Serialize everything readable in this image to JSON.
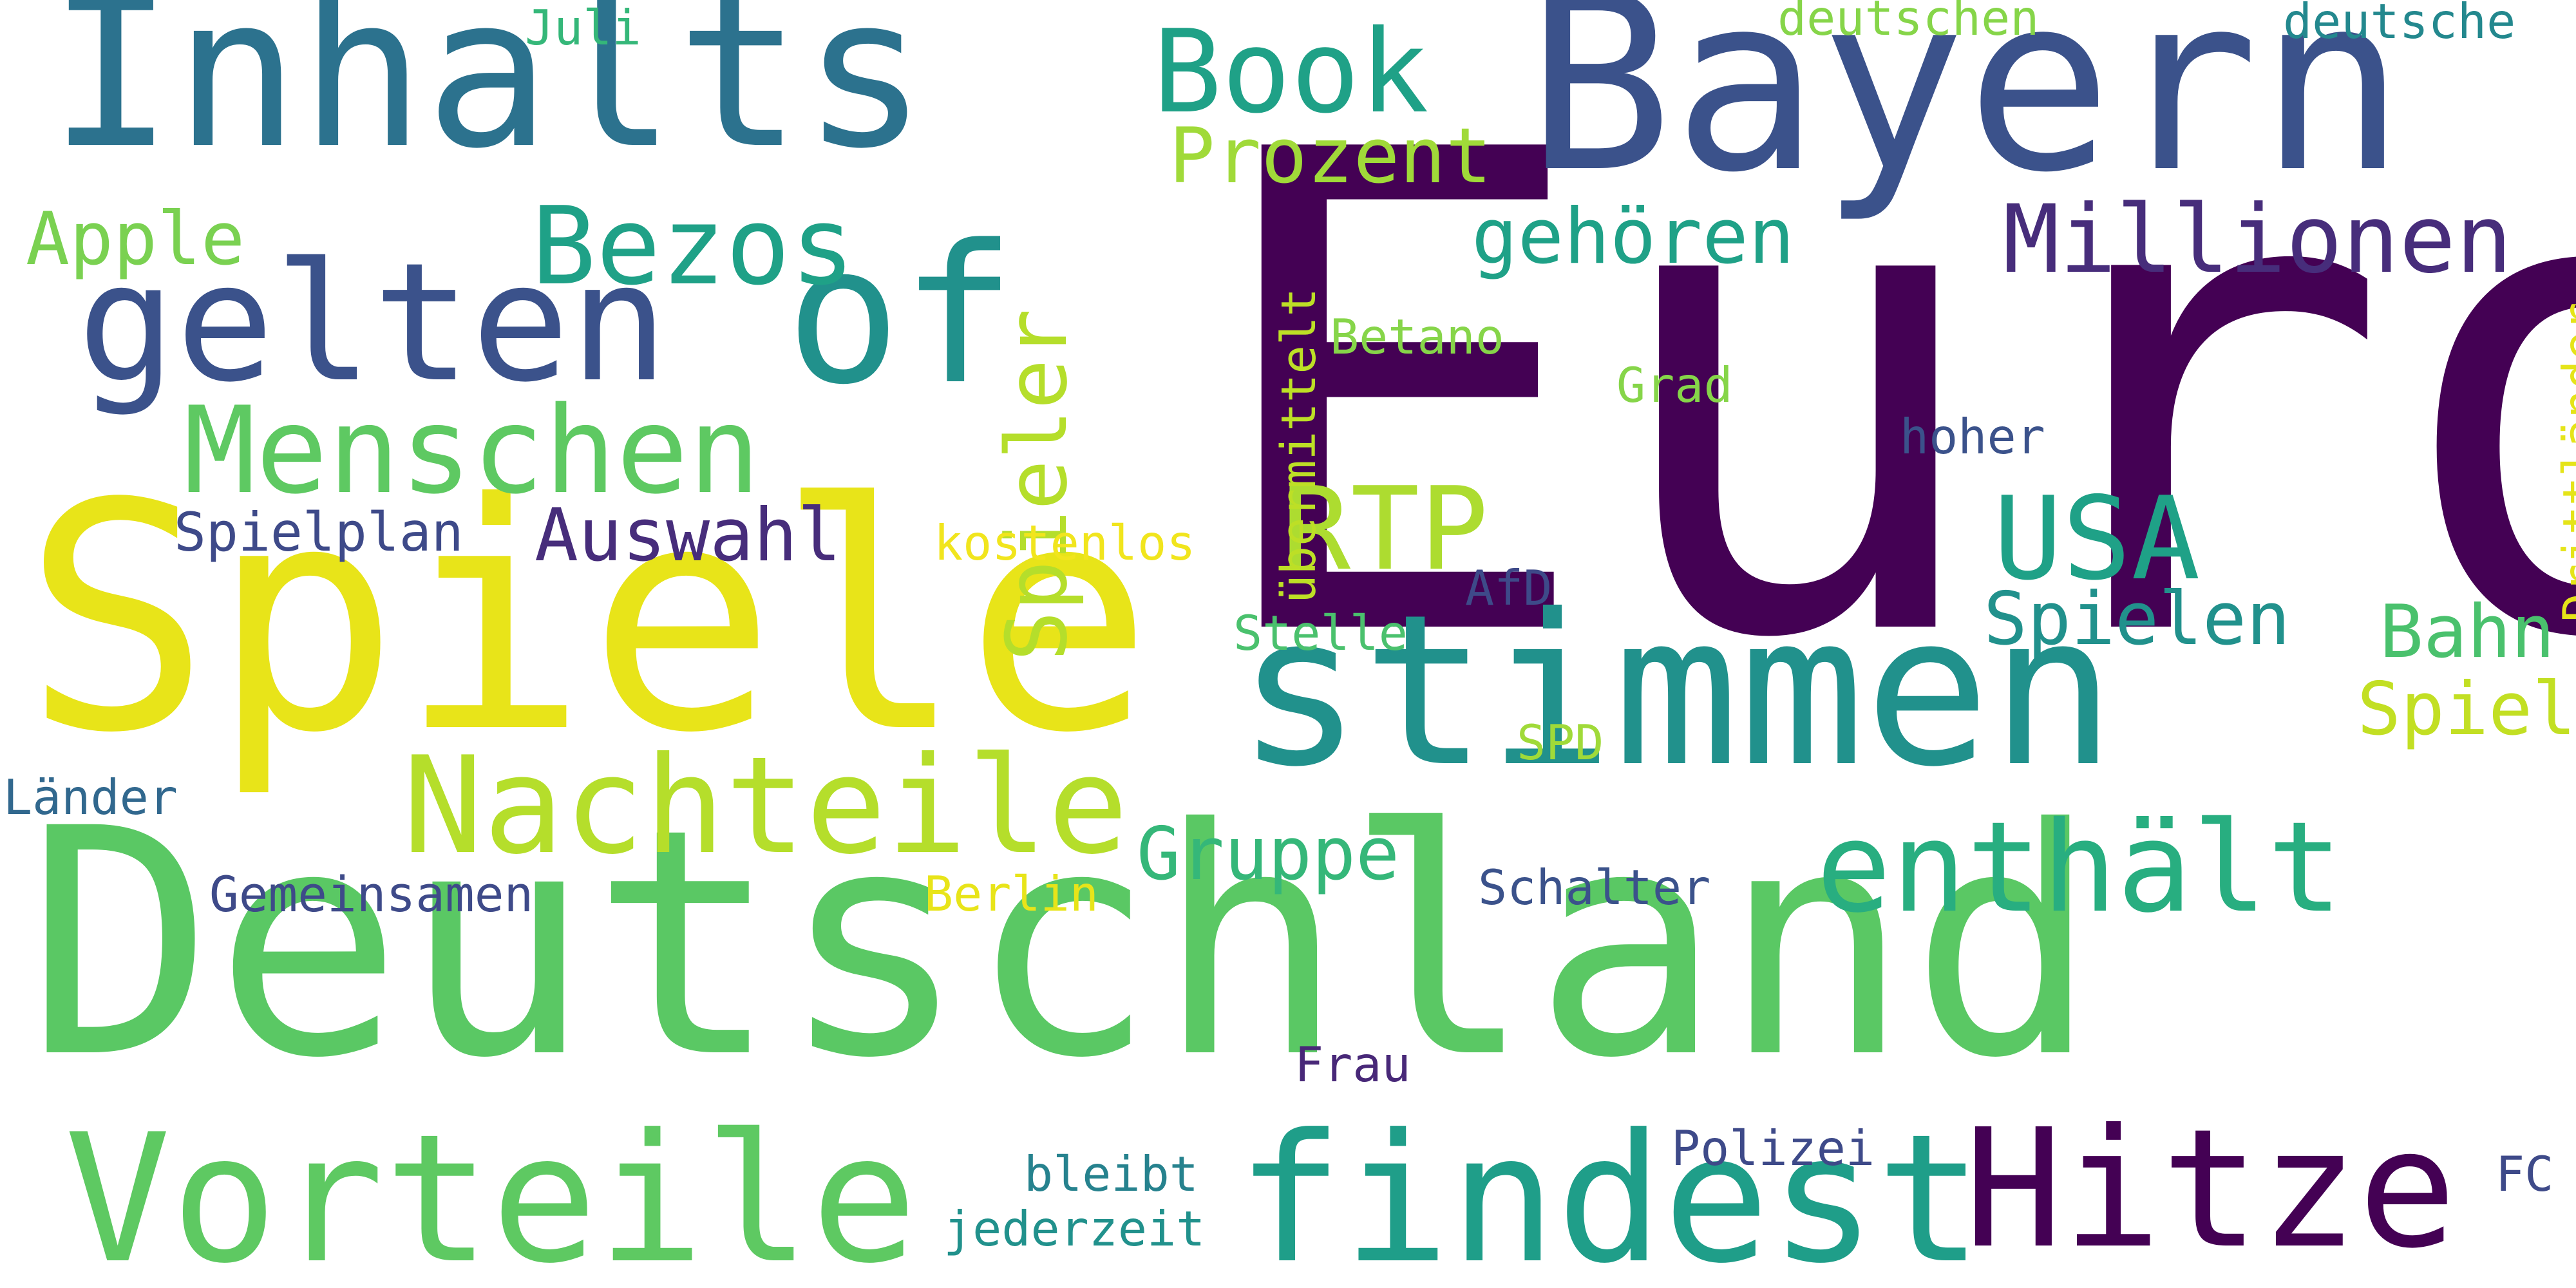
{
  "words": [
    {
      "text": "Euro",
      "color": "#440154"
    },
    {
      "text": "Deutschland",
      "color": "#5ac864"
    },
    {
      "text": "Spiele",
      "color": "#e8e419"
    },
    {
      "text": "Bayern",
      "color": "#3b528b"
    },
    {
      "text": "Inhalts",
      "color": "#2c728e"
    },
    {
      "text": "stimmen",
      "color": "#21918c"
    },
    {
      "text": "of",
      "color": "#21918c"
    },
    {
      "text": "findest",
      "color": "#1f9e89"
    },
    {
      "text": "Vorteile",
      "color": "#5ec962"
    },
    {
      "text": "gelten",
      "color": "#3b528b"
    },
    {
      "text": "Hitze",
      "color": "#440154"
    },
    {
      "text": "Nachteile",
      "color": "#b5de2b"
    },
    {
      "text": "enthält",
      "color": "#28ae80"
    },
    {
      "text": "Menschen",
      "color": "#5ec962"
    },
    {
      "text": "RTP",
      "color": "#addc30"
    },
    {
      "text": "USA",
      "color": "#1fa187"
    },
    {
      "text": "Book",
      "color": "#1fa187"
    },
    {
      "text": "Bezos",
      "color": "#1fa187"
    },
    {
      "text": "Millionen",
      "color": "#472d7b"
    },
    {
      "text": "Spieler",
      "color": "#b5de2b"
    },
    {
      "text": "Prozent",
      "color": "#a0da39"
    },
    {
      "text": "gehören",
      "color": "#1fa187"
    },
    {
      "text": "Apple",
      "color": "#7ad151"
    },
    {
      "text": "Auswahl",
      "color": "#472d7b"
    },
    {
      "text": "Spielen",
      "color": "#21918c"
    },
    {
      "text": "Bahn",
      "color": "#4ac16d"
    },
    {
      "text": "Spiel",
      "color": "#c2df23"
    },
    {
      "text": "Gruppe",
      "color": "#35b779"
    },
    {
      "text": "übermittelt",
      "color": "#bddf26"
    },
    {
      "text": "Drittländer",
      "color": "#e5e419"
    },
    {
      "text": "Spielplan",
      "color": "#3e4a89"
    },
    {
      "text": "Gemeinsamen",
      "color": "#3e4a89"
    },
    {
      "text": "Länder",
      "color": "#31688e"
    },
    {
      "text": "Berlin",
      "color": "#e8e419"
    },
    {
      "text": "Schalter",
      "color": "#3b528b"
    },
    {
      "text": "Frau",
      "color": "#482878"
    },
    {
      "text": "Polizei",
      "color": "#3e4a89"
    },
    {
      "text": "bleibt",
      "color": "#26828e"
    },
    {
      "text": "jederzeit",
      "color": "#21918c"
    },
    {
      "text": "FC",
      "color": "#3e4a89"
    },
    {
      "text": "Juli",
      "color": "#35b779"
    },
    {
      "text": "deutschen",
      "color": "#86d549"
    },
    {
      "text": "deutsche",
      "color": "#23888e"
    },
    {
      "text": "Betano",
      "color": "#86d549"
    },
    {
      "text": "Grad",
      "color": "#86d549"
    },
    {
      "text": "hoher",
      "color": "#3b528b"
    },
    {
      "text": "kostenlos",
      "color": "#f1e51d"
    },
    {
      "text": "AfD",
      "color": "#3e4a89"
    },
    {
      "text": "Stelle",
      "color": "#4ac16d"
    },
    {
      "text": "SPD",
      "color": "#a0da39"
    }
  ]
}
